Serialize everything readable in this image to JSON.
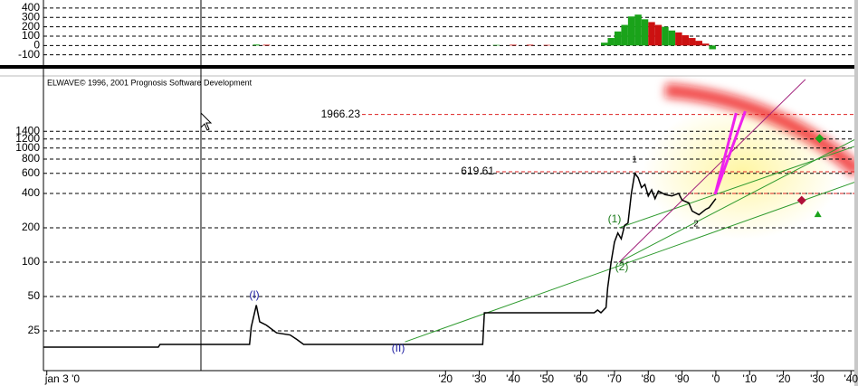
{
  "chart_data": [
    {
      "type": "bar",
      "ylim": [
        -190,
        486
      ],
      "yticks": [
        400,
        300,
        200,
        100,
        0,
        -100
      ],
      "xlim": [
        1801,
        2041
      ],
      "grid": true,
      "x": [
        1864,
        1867,
        1935,
        1940,
        1945,
        1950,
        1967,
        1969,
        1971,
        1973,
        1975,
        1977,
        1979,
        1981,
        1983,
        1985,
        1987,
        1989,
        1991,
        1993,
        1995,
        1997,
        1999
      ],
      "values": [
        10,
        8,
        6,
        8,
        8,
        6,
        30,
        80,
        150,
        220,
        310,
        330,
        280,
        250,
        220,
        200,
        160,
        140,
        110,
        80,
        50,
        20,
        -40
      ],
      "colors": [
        "#1aa31a",
        "#cc1111",
        "#1aa31a",
        "#cc1111",
        "#cc1111",
        "#cc1111",
        "#1aa31a",
        "#1aa31a",
        "#1aa31a",
        "#1aa31a",
        "#1aa31a",
        "#1aa31a",
        "#1aa31a",
        "#cc1111",
        "#cc1111",
        "#1aa31a",
        "#1aa31a",
        "#cc1111",
        "#cc1111",
        "#cc1111",
        "#cc1111",
        "#cc1111",
        "#1aa31a"
      ]
    },
    {
      "type": "line",
      "title": "ELWAVE© 1996, 2001 Prognosis Software Development",
      "log_scale": true,
      "ylim": [
        11.2,
        4280
      ],
      "yticks": [
        25,
        50,
        100,
        200,
        400,
        600,
        800,
        1000,
        1200,
        1400
      ],
      "xlim": [
        1801,
        2041
      ],
      "xticks": [
        {
          "value": 1802,
          "label": "jan 3 '0"
        },
        {
          "value": 1920,
          "label": "'20"
        },
        {
          "value": 1930,
          "label": "'30"
        },
        {
          "value": 1940,
          "label": "'40"
        },
        {
          "value": 1950,
          "label": "'50"
        },
        {
          "value": 1960,
          "label": "'60"
        },
        {
          "value": 1970,
          "label": "'70"
        },
        {
          "value": 1980,
          "label": "'80"
        },
        {
          "value": 1990,
          "label": "'90"
        },
        {
          "value": 2000,
          "label": "'0"
        },
        {
          "value": 2010,
          "label": "'10"
        },
        {
          "value": 2020,
          "label": "'20"
        },
        {
          "value": 2030,
          "label": "'30"
        },
        {
          "value": 2040,
          "label": "'40"
        }
      ],
      "grid": true,
      "color": "#000000",
      "x": [
        1801,
        1835,
        1835.5,
        1862,
        1862.5,
        1864,
        1865,
        1867,
        1870,
        1874,
        1876,
        1878,
        1931,
        1931.5,
        1964,
        1965,
        1966,
        1967.5,
        1968,
        1969,
        1970,
        1971,
        1972,
        1973,
        1974,
        1975,
        1976,
        1977,
        1978,
        1979,
        1980,
        1981,
        1982,
        1983,
        1985,
        1987,
        1989,
        1990,
        1992,
        1993,
        1995,
        1997,
        1998,
        2000
      ],
      "values": [
        18,
        18,
        19,
        19,
        27,
        42,
        30,
        28,
        24,
        23,
        21,
        19,
        19,
        36,
        36,
        38,
        36,
        40,
        60,
        100,
        150,
        180,
        160,
        210,
        220,
        400,
        600,
        550,
        450,
        480,
        380,
        430,
        360,
        420,
        390,
        380,
        400,
        350,
        330,
        280,
        260,
        290,
        300,
        360
      ],
      "levels": [
        {
          "value": 1966.23,
          "label": "1966.23"
        },
        {
          "value": 619.61,
          "label": "619.61"
        },
        400
      ],
      "level_color": "#dd2222",
      "lines": [
        {
          "color": "#2e9a2e",
          "x": [
            1908,
            2043.7
          ],
          "values": [
            20,
            535
          ]
        },
        {
          "color": "#2e9a2e",
          "x": [
            1971.4,
            2043.7
          ],
          "values": [
            100,
            1300
          ]
        },
        {
          "color": "#2e9a2e",
          "x": [
            1971.4,
            2043.7
          ],
          "values": [
            200,
            1100
          ]
        },
        {
          "color": "#a0207a",
          "x": [
            1971.4,
            2026.5
          ],
          "values": [
            100,
            3990
          ]
        },
        {
          "color": "#ee22ee",
          "x": [
            1999.8,
            2006
          ],
          "values": [
            393,
            2025
          ]
        },
        {
          "color": "#ee22ee",
          "x": [
            1999.8,
            2008.7
          ],
          "values": [
            393,
            2100
          ]
        }
      ],
      "markers": [
        {
          "shape": "diamond",
          "color": "#b0103a",
          "x": 2025.4,
          "value": 348
        },
        {
          "shape": "triangle",
          "color": "#1aa31a",
          "x": 2030.2,
          "value": 262
        },
        {
          "shape": "diamond",
          "color": "#1aa31a",
          "x": 2030.7,
          "value": 1210
        }
      ],
      "wave_labels": [
        "(I)",
        "(II)",
        "(1)",
        "(2)",
        "1",
        "2"
      ]
    }
  ]
}
